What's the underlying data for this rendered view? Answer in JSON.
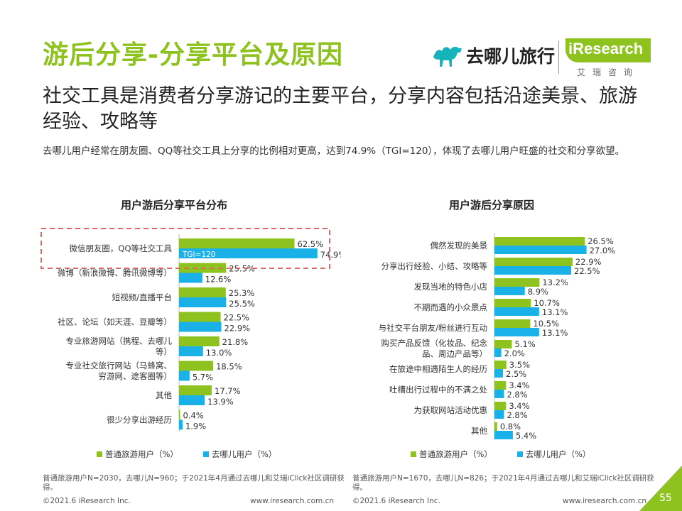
{
  "header": {
    "title": "游后分享-分享平台及原因",
    "subtitle": "社交工具是消费者分享游记的主要平台，分享内容包括沿途美景、旅游经验、攻略等",
    "description": "去哪儿用户经常在朋友圈、QQ等社交工具上分享的比例相对更高，达到74.9%（TGI=120），体现了去哪儿用户旺盛的社交和分享欲望。"
  },
  "logos": {
    "qunar": "去哪儿旅行",
    "iresearch": "iResearch",
    "iresearch_cn": "艾瑞咨询"
  },
  "colors": {
    "accent": "#8dc21f",
    "series1": "#8dc21f",
    "series2": "#1ab0e8",
    "highlight": "#e06666"
  },
  "chart_data": [
    {
      "type": "bar",
      "orientation": "horizontal",
      "title": "用户游后分享平台分布",
      "categories": [
        "微信朋友圈，QQ等社交工具",
        "微博（新浪微博、腾讯微博等）",
        "短视频/直播平台",
        "社区、论坛（如天涯、豆瓣等）",
        "专业旅游网站（携程、去哪儿等）",
        "专业社交旅行网站（马蜂窝、穷游网、途客圈等）",
        "其他",
        "很少分享出游经历"
      ],
      "category_lines": [
        [
          "微信朋友圈，QQ等社交工具"
        ],
        [
          "微博（新浪微博、腾讯微博等）"
        ],
        [
          "短视频/直播平台"
        ],
        [
          "社区、论坛（如天涯、豆瓣等）"
        ],
        [
          "专业旅游网站（携程、去哪儿",
          "等）"
        ],
        [
          "专业社交旅行网站（马蜂窝、",
          "穷游网、途客圈等）"
        ],
        [
          "其他"
        ],
        [
          "很少分享出游经历"
        ]
      ],
      "series": [
        {
          "name": "普通旅游用户（%）",
          "values": [
            62.5,
            25.5,
            25.3,
            22.5,
            21.8,
            18.5,
            17.7,
            0.4
          ]
        },
        {
          "name": "去哪儿用户（%）",
          "values": [
            74.9,
            12.6,
            25.5,
            22.9,
            13.0,
            5.7,
            13.9,
            1.9
          ]
        }
      ],
      "value_labels": [
        [
          "62.5%",
          "25.5%",
          "25.3%",
          "22.5%",
          "21.8%",
          "18.5%",
          "17.7%",
          "0.4%"
        ],
        [
          "74.9%",
          "12.6%",
          "25.5%",
          "22.9%",
          "13.0%",
          "5.7%",
          "13.9%",
          "1.9%"
        ]
      ],
      "annotation": "TGI=120",
      "highlight_index": 0,
      "legend": [
        "普通旅游用户（%）",
        "去哪儿用户（%）"
      ],
      "xlim": [
        0,
        80
      ]
    },
    {
      "type": "bar",
      "orientation": "horizontal",
      "title": "用户游后分享原因",
      "categories": [
        "偶然发现的美景",
        "分享出行经验、小结、攻略等",
        "发现当地的特色小店",
        "不期而遇的小众景点",
        "与社交平台朋友/粉丝进行互动",
        "购买产品反馈（化妆品、纪念品、周边产品等）",
        "在旅途中相遇陌生人的经历",
        "吐槽出行过程中的不满之处",
        "为获取网站活动优惠",
        "其他"
      ],
      "category_lines": [
        [
          "偶然发现的美景"
        ],
        [
          "分享出行经验、小结、攻略等"
        ],
        [
          "发现当地的特色小店"
        ],
        [
          "不期而遇的小众景点"
        ],
        [
          "与社交平台朋友/粉丝进行互动"
        ],
        [
          "购买产品反馈（化妆品、纪念",
          "品、周边产品等）"
        ],
        [
          "在旅途中相遇陌生人的经历"
        ],
        [
          "吐槽出行过程中的不满之处"
        ],
        [
          "为获取网站活动优惠"
        ],
        [
          "其他"
        ]
      ],
      "series": [
        {
          "name": "普通旅游用户（%）",
          "values": [
            26.5,
            22.9,
            13.2,
            10.7,
            10.5,
            5.1,
            3.5,
            3.4,
            3.4,
            0.8
          ]
        },
        {
          "name": "去哪儿用户（%）",
          "values": [
            27.0,
            22.5,
            8.9,
            13.1,
            13.1,
            2.0,
            2.5,
            2.8,
            2.8,
            5.4
          ]
        }
      ],
      "value_labels": [
        [
          "26.5%",
          "22.9%",
          "13.2%",
          "10.7%",
          "10.5%",
          "5.1%",
          "3.5%",
          "3.4%",
          "3.4%",
          "0.8%"
        ],
        [
          "27.0%",
          "22.5%",
          "8.9%",
          "13.1%",
          "13.1%",
          "2.0%",
          "2.5%",
          "2.8%",
          "2.8%",
          "5.4%"
        ]
      ],
      "legend": [
        "普通旅游用户（%）",
        "去哪儿用户（%）"
      ],
      "xlim": [
        0,
        30
      ]
    }
  ],
  "footnotes": {
    "left_lines": [
      "普通旅游用户N=2030，去哪儿N=960；于2021年4月通过去哪儿和艾瑞iClick社区调研获",
      "得。"
    ],
    "right_lines": [
      "普通旅游用户N=1670，去哪儿N=826；于2021年4月通过去哪儿和艾瑞iClick社区调研获",
      "得。"
    ]
  },
  "footer": {
    "copyright_left": "©2021.6 iResearch Inc.",
    "url_left": "www.iresearch.com.cn",
    "copyright_right": "©2021.6 iResearch Inc.",
    "url_right": "www.iresearch.com.cn",
    "page": "55"
  }
}
